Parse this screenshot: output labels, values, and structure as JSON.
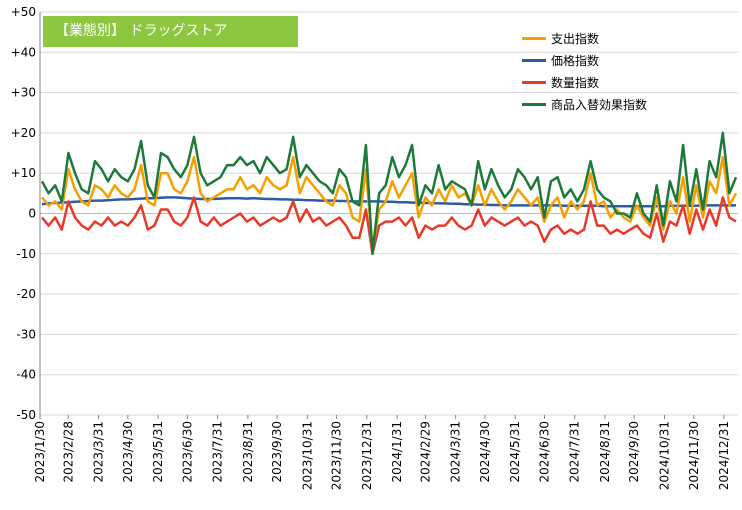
{
  "chart_data": {
    "type": "line",
    "title": "【業態別】 ドラッグストア",
    "xlabel": "",
    "ylabel": "",
    "ylim": [
      -50,
      50
    ],
    "yticks": [
      "+50",
      "+40",
      "+30",
      "+20",
      "+10",
      "0",
      "-10",
      "-20",
      "-30",
      "-40",
      "-50"
    ],
    "ytick_values": [
      50,
      40,
      30,
      20,
      10,
      0,
      -10,
      -20,
      -30,
      -40,
      -50
    ],
    "x_start": "2023-01-30",
    "x_end": "2024-12-31",
    "x_ticks": [
      "2023/1/30",
      "2023/2/28",
      "2023/3/31",
      "2023/4/30",
      "2023/5/31",
      "2023/6/30",
      "2023/7/31",
      "2023/8/31",
      "2023/9/30",
      "2023/10/31",
      "2023/11/30",
      "2023/12/31",
      "2024/1/31",
      "2024/2/29",
      "2024/3/31",
      "2024/4/30",
      "2024/5/31",
      "2024/6/30",
      "2024/7/31",
      "2024/8/31",
      "2024/9/30",
      "2024/10/31",
      "2024/11/30",
      "2024/12/31"
    ],
    "grid": true,
    "legend_position": "top-right",
    "series": [
      {
        "name": "支出指数",
        "color": "#f5a000",
        "values": [
          4,
          2,
          3,
          1,
          11,
          6,
          3,
          2,
          7,
          6,
          4,
          7,
          5,
          4,
          6,
          12,
          3,
          2,
          10,
          10,
          6,
          5,
          8,
          14,
          5,
          3,
          4,
          5,
          6,
          6,
          9,
          6,
          7,
          5,
          9,
          7,
          6,
          7,
          14,
          5,
          9,
          7,
          5,
          3,
          2,
          7,
          5,
          -1,
          -2,
          11,
          -9,
          1,
          3,
          8,
          4,
          7,
          10,
          -1,
          4,
          2,
          6,
          3,
          7,
          4,
          5,
          2,
          7,
          2,
          6,
          3,
          1,
          3,
          6,
          4,
          2,
          4,
          -2,
          2,
          4,
          -1,
          3,
          1,
          3,
          10,
          2,
          3,
          -1,
          1,
          -1,
          -2,
          2,
          -1,
          -3,
          4,
          -4,
          3,
          0,
          9,
          -2,
          7,
          -1,
          8,
          5,
          14,
          2,
          5
        ]
      },
      {
        "name": "価格指数",
        "color": "#2a5caa",
        "values": [
          2.3,
          2.5,
          2.6,
          2.7,
          2.8,
          2.9,
          3.0,
          3.1,
          3.2,
          3.2,
          3.3,
          3.4,
          3.5,
          3.5,
          3.6,
          3.7,
          3.8,
          3.8,
          3.9,
          4.0,
          4.0,
          3.9,
          3.8,
          3.7,
          3.6,
          3.6,
          3.6,
          3.7,
          3.8,
          3.8,
          3.8,
          3.7,
          3.8,
          3.7,
          3.6,
          3.6,
          3.5,
          3.5,
          3.4,
          3.4,
          3.3,
          3.3,
          3.2,
          3.2,
          3.2,
          3.1,
          3.1,
          3.0,
          3.0,
          3.0,
          3.0,
          3.0,
          2.9,
          2.9,
          2.8,
          2.8,
          2.7,
          2.7,
          2.6,
          2.6,
          2.5,
          2.5,
          2.4,
          2.4,
          2.3,
          2.3,
          2.2,
          2.2,
          2.1,
          2.1,
          2.0,
          2.0,
          2.0,
          2.0,
          2.0,
          2.0,
          2.0,
          2.0,
          2.0,
          1.9,
          1.9,
          1.9,
          1.9,
          1.9,
          1.9,
          1.8,
          1.8,
          1.8,
          1.8,
          1.8,
          1.8,
          1.8,
          1.8,
          1.8,
          1.8,
          1.9,
          1.9,
          1.9,
          1.9,
          1.9,
          2.0,
          2.0,
          2.0,
          2.0,
          2.0,
          2.0
        ]
      },
      {
        "name": "数量指数",
        "color": "#e83a2a",
        "values": [
          -1,
          -3,
          -1,
          -4,
          3,
          -1,
          -3,
          -4,
          -2,
          -3,
          -1,
          -3,
          -2,
          -3,
          -1,
          2,
          -4,
          -3,
          1,
          1,
          -2,
          -3,
          -1,
          4,
          -2,
          -3,
          -1,
          -3,
          -2,
          -1,
          0,
          -2,
          -1,
          -3,
          -2,
          -1,
          -2,
          -1,
          3,
          -2,
          1,
          -2,
          -1,
          -3,
          -2,
          -1,
          -3,
          -6,
          -6,
          1,
          -10,
          -3,
          -2,
          -2,
          -1,
          -3,
          -1,
          -6,
          -3,
          -4,
          -3,
          -3,
          -1,
          -3,
          -4,
          -3,
          1,
          -3,
          -1,
          -2,
          -3,
          -2,
          -1,
          -3,
          -2,
          -3,
          -7,
          -4,
          -3,
          -5,
          -4,
          -5,
          -4,
          3,
          -3,
          -3,
          -5,
          -4,
          -5,
          -4,
          -3,
          -5,
          -6,
          0,
          -7,
          -2,
          -3,
          2,
          -5,
          1,
          -4,
          1,
          -3,
          4,
          -1,
          -2
        ]
      },
      {
        "name": "商品入替効果指数",
        "color": "#1e7a3c",
        "values": [
          8,
          5,
          7,
          3,
          15,
          10,
          6,
          5,
          13,
          11,
          8,
          11,
          9,
          8,
          11,
          18,
          7,
          4,
          15,
          14,
          11,
          9,
          12,
          19,
          10,
          7,
          8,
          9,
          12,
          12,
          14,
          12,
          13,
          10,
          14,
          12,
          10,
          11,
          19,
          9,
          12,
          10,
          8,
          7,
          5,
          11,
          9,
          3,
          2,
          17,
          -10,
          5,
          7,
          14,
          9,
          12,
          17,
          2,
          7,
          5,
          12,
          6,
          8,
          7,
          6,
          2,
          13,
          6,
          11,
          7,
          4,
          6,
          11,
          9,
          6,
          9,
          -1,
          8,
          9,
          4,
          6,
          3,
          6,
          13,
          6,
          4,
          3,
          0,
          0,
          -1,
          5,
          0,
          -2,
          7,
          -3,
          8,
          3,
          17,
          2,
          11,
          1,
          13,
          9,
          20,
          5,
          9
        ]
      }
    ]
  },
  "colors": {
    "grid": "#d9d9d9",
    "axis": "#868686",
    "title_bg": "#8dc63f",
    "title_text": "#ffffff"
  }
}
